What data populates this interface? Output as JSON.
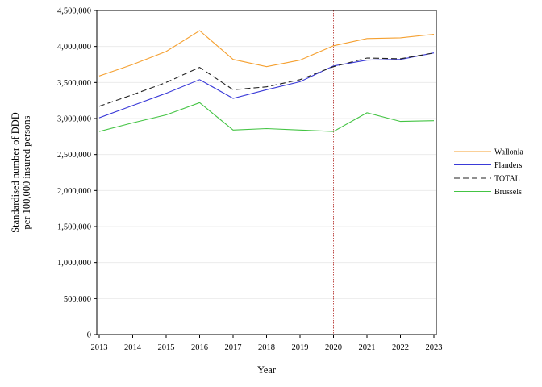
{
  "chart_data": {
    "type": "line",
    "title": "",
    "xlabel": "Year",
    "ylabel": [
      "Standardised number of DDD",
      "per 100,000 insured persons"
    ],
    "x": [
      2013,
      2014,
      2015,
      2016,
      2017,
      2018,
      2019,
      2020,
      2021,
      2022,
      2023
    ],
    "ylim": [
      0,
      4500000
    ],
    "yticks": [
      0,
      500000,
      1000000,
      1500000,
      2000000,
      2500000,
      3000000,
      3500000,
      4000000,
      4500000
    ],
    "ytick_labels": [
      "0",
      "500,000",
      "1,000,000",
      "1,500,000",
      "2,000,000",
      "2,500,000",
      "3,000,000",
      "3,500,000",
      "4,000,000",
      "4,500,000"
    ],
    "grid": "horizontal",
    "reference_line": {
      "x": 2020,
      "color": "#c0504d",
      "style": "dotted"
    },
    "legend_position": "right",
    "series": [
      {
        "name": "Wallonia",
        "color": "#f5a030",
        "dash": "solid",
        "values": [
          3590000,
          3750000,
          3930000,
          4220000,
          3820000,
          3720000,
          3810000,
          4010000,
          4110000,
          4120000,
          4170000
        ]
      },
      {
        "name": "Flanders",
        "color": "#3a3ad8",
        "dash": "solid",
        "values": [
          3010000,
          3180000,
          3350000,
          3540000,
          3280000,
          3400000,
          3510000,
          3730000,
          3810000,
          3820000,
          3910000
        ]
      },
      {
        "name": "TOTAL",
        "color": "#222222",
        "dash": "dashed",
        "values": [
          3170000,
          3330000,
          3500000,
          3710000,
          3400000,
          3440000,
          3540000,
          3720000,
          3840000,
          3830000,
          3910000
        ]
      },
      {
        "name": "Brussels",
        "color": "#44c444",
        "dash": "solid",
        "values": [
          2820000,
          2940000,
          3050000,
          3220000,
          2840000,
          2860000,
          2840000,
          2820000,
          3080000,
          2960000,
          2970000
        ]
      }
    ]
  }
}
